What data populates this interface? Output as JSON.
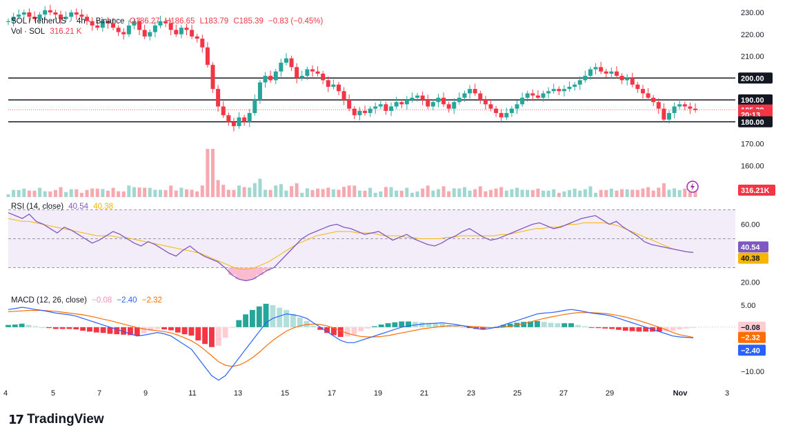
{
  "header": {
    "symbol": "SOL / TetherUS",
    "interval": "4h",
    "exchange": "Binance",
    "open": "O186.27",
    "high": "H186.65",
    "low": "L183.79",
    "close": "C185.39",
    "change": "−0.83 (−0.45%)",
    "vol_label": "Vol · SOL",
    "vol_value": "316.21 K"
  },
  "rsi_header": {
    "label": "RSI (14, close)",
    "rsi": "40.54",
    "ma": "40.38"
  },
  "macd_header": {
    "label": "MACD (12, 26, close)",
    "hist": "−0.08",
    "macd": "−2.40",
    "signal": "−2.32"
  },
  "brand": {
    "name": "TradingView"
  },
  "colors": {
    "up": "#26a69a",
    "down": "#f23645",
    "rsi": "#7e57c2",
    "rsi_ma": "#f7b500",
    "macd": "#2962ff",
    "signal": "#ff6d00"
  },
  "chart_data": [
    {
      "type": "candlestick",
      "title": "SOL / TetherUS · 4h · Binance",
      "x": [
        "4",
        "5",
        "7",
        "9",
        "11",
        "13",
        "15",
        "17",
        "19",
        "21",
        "23",
        "25",
        "27",
        "29",
        "Nov",
        "3"
      ],
      "ylim": [
        150,
        230
      ],
      "y_ticks": [
        160,
        170,
        180,
        190,
        200,
        210,
        220,
        230
      ],
      "horizontal_levels": [
        180,
        190,
        200
      ],
      "price_labels": [
        {
          "text": "200.00",
          "value": 200,
          "style": "level"
        },
        {
          "text": "190.00",
          "value": 190,
          "style": "level"
        },
        {
          "text": "185.39",
          "value": 185.39,
          "style": "last"
        },
        {
          "text": "20:13",
          "value": 183.2,
          "style": "countdown"
        },
        {
          "text": "180.00",
          "value": 180,
          "style": "level"
        }
      ],
      "volume_label": "316.21K",
      "close_series": [
        226,
        228,
        229,
        230,
        228,
        227,
        229,
        231,
        230,
        229,
        227,
        228,
        230,
        229,
        228,
        226,
        224,
        223,
        226,
        225,
        223,
        221,
        220,
        224,
        226,
        222,
        219,
        221,
        224,
        226,
        225,
        222,
        220,
        223,
        222,
        219,
        218,
        214,
        206,
        195,
        187,
        183,
        180,
        178,
        182,
        180,
        184,
        190,
        198,
        201,
        199,
        203,
        207,
        209,
        205,
        200,
        201,
        204,
        203,
        202,
        199,
        196,
        197,
        194,
        190,
        186,
        183,
        185,
        184,
        186,
        187,
        188,
        185,
        187,
        189,
        188,
        190,
        191,
        192,
        190,
        187,
        189,
        191,
        188,
        186,
        189,
        191,
        193,
        195,
        193,
        190,
        188,
        186,
        184,
        182,
        184,
        186,
        188,
        191,
        193,
        192,
        191,
        193,
        194,
        195,
        194,
        195,
        196,
        197,
        199,
        201,
        204,
        205,
        203,
        202,
        203,
        201,
        199,
        200,
        197,
        195,
        193,
        191,
        189,
        186,
        181,
        184,
        187,
        188,
        187,
        186,
        185.39
      ]
    },
    {
      "type": "line",
      "title": "RSI (14, close)",
      "ylim": [
        15,
        75
      ],
      "y_ticks": [
        20,
        60
      ],
      "bands": [
        30,
        50,
        70
      ],
      "series": [
        {
          "name": "RSI",
          "last": 40.54,
          "values": [
            68,
            66,
            64,
            67,
            62,
            60,
            57,
            54,
            58,
            56,
            53,
            50,
            47,
            49,
            52,
            55,
            53,
            50,
            47,
            45,
            48,
            46,
            43,
            40,
            38,
            42,
            45,
            41,
            38,
            36,
            34,
            30,
            25,
            22,
            21,
            22,
            25,
            28,
            30,
            35,
            40,
            45,
            50,
            53,
            55,
            57,
            59,
            60,
            58,
            57,
            55,
            53,
            54,
            55,
            52,
            49,
            51,
            53,
            50,
            48,
            46,
            45,
            47,
            50,
            52,
            55,
            57,
            54,
            51,
            49,
            50,
            52,
            54,
            56,
            58,
            60,
            61,
            59,
            57,
            58,
            60,
            62,
            64,
            65,
            66,
            63,
            60,
            62,
            58,
            55,
            52,
            48,
            46,
            45,
            44,
            43,
            42,
            41,
            40.54
          ]
        },
        {
          "name": "RSI MA",
          "last": 40.38,
          "values": [
            64,
            63,
            62,
            62,
            61,
            60,
            59,
            58,
            57,
            56,
            55,
            54,
            53,
            52,
            52,
            52,
            51,
            51,
            50,
            49,
            48,
            47,
            46,
            45,
            44,
            43,
            42,
            41,
            40,
            38,
            36,
            34,
            32,
            30,
            29,
            29,
            30,
            32,
            34,
            37,
            40,
            43,
            46,
            48,
            50,
            52,
            53,
            54,
            55,
            55,
            55,
            54,
            54,
            54,
            53,
            52,
            52,
            52,
            51,
            51,
            50,
            50,
            50,
            50,
            51,
            51,
            52,
            52,
            52,
            52,
            52,
            52,
            53,
            53,
            54,
            55,
            56,
            57,
            57,
            58,
            58,
            59,
            60,
            60,
            61,
            61,
            61,
            61,
            60,
            59,
            57,
            55,
            53,
            51,
            49,
            47,
            45,
            43,
            42,
            41,
            40.38
          ]
        }
      ]
    },
    {
      "type": "line",
      "title": "MACD (12, 26, close)",
      "ylim": [
        -12.5,
        7
      ],
      "y_ticks": [
        5,
        -10
      ],
      "series": [
        {
          "name": "MACD",
          "last": -2.4,
          "values": [
            4,
            4.2,
            4.5,
            4.3,
            4,
            3.8,
            3.5,
            3.2,
            3,
            2.8,
            2.5,
            2,
            1.5,
            1,
            0.5,
            0,
            -0.5,
            -1,
            -1.5,
            -2,
            -1.8,
            -1.5,
            -1.2,
            -1.5,
            -2,
            -3,
            -4,
            -5,
            -7,
            -9,
            -11,
            -12,
            -11,
            -9,
            -7,
            -5,
            -3,
            -1,
            1,
            2,
            2.5,
            3,
            2.8,
            2.5,
            2,
            1,
            0,
            -1,
            -2,
            -3,
            -3.5,
            -3.5,
            -3,
            -2.5,
            -2,
            -1.5,
            -1,
            -0.5,
            0,
            0.3,
            0.5,
            0.7,
            0.8,
            0.9,
            1,
            0.8,
            0.6,
            0.3,
            0,
            -0.3,
            -0.5,
            -0.3,
            0,
            0.5,
            1,
            1.5,
            2,
            2.5,
            3,
            3.2,
            3.3,
            3.5,
            3.8,
            4,
            3.8,
            3.5,
            3.2,
            3,
            2.8,
            2.5,
            2,
            1.5,
            1,
            0.5,
            0,
            -0.5,
            -1,
            -1.5,
            -2,
            -2.2,
            -2.3,
            -2.4
          ]
        },
        {
          "name": "Signal",
          "last": -2.32,
          "values": [
            3.5,
            3.6,
            3.7,
            3.8,
            3.8,
            3.8,
            3.7,
            3.6,
            3.4,
            3.2,
            3,
            2.8,
            2.5,
            2.2,
            1.8,
            1.5,
            1.1,
            0.7,
            0.3,
            -0.1,
            -0.4,
            -0.6,
            -0.8,
            -1,
            -1.3,
            -1.8,
            -2.4,
            -3.1,
            -4,
            -5.2,
            -6.5,
            -7.8,
            -8.6,
            -8.9,
            -8.6,
            -7.9,
            -6.9,
            -5.7,
            -4.3,
            -3,
            -1.9,
            -0.9,
            -0.2,
            0.3,
            0.6,
            0.7,
            0.6,
            0.3,
            -0.2,
            -0.8,
            -1.4,
            -1.8,
            -2.1,
            -2.2,
            -2.2,
            -2.1,
            -1.9,
            -1.6,
            -1.3,
            -1,
            -0.7,
            -0.4,
            -0.2,
            0,
            0.2,
            0.3,
            0.3,
            0.3,
            0.2,
            0.1,
            0,
            -0.1,
            -0.1,
            0,
            0.2,
            0.5,
            0.8,
            1.2,
            1.6,
            2,
            2.3,
            2.6,
            2.9,
            3.1,
            3.3,
            3.3,
            3.3,
            3.2,
            3.1,
            2.9,
            2.6,
            2.3,
            1.9,
            1.5,
            1,
            0.5,
            0,
            -0.6,
            -1.2,
            -1.7,
            -2.0,
            -2.32
          ]
        }
      ]
    }
  ]
}
